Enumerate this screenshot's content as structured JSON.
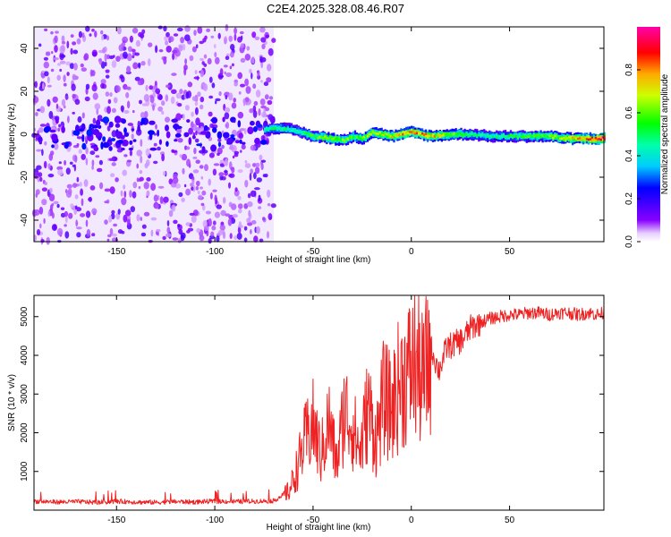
{
  "title": "C2E4.2025.328.08.46.R07",
  "colors": {
    "snr_line": "#ee2222",
    "background": "#ffffff",
    "colormap": [
      "#ffffff",
      "#8800ff",
      "#0000ff",
      "#00ffff",
      "#00ff00",
      "#ffff00",
      "#ff0000",
      "#ff00ff"
    ]
  },
  "chart_data": [
    {
      "type": "heatmap",
      "xlabel": "Height of straight line (km)",
      "ylabel": "Frequency (Hz)",
      "xlim": [
        -192,
        98
      ],
      "ylim": [
        -50,
        50
      ],
      "x_ticks": [
        -150,
        -100,
        -50,
        0,
        50
      ],
      "x_tick_labels": [
        "-150",
        "-100",
        "-50",
        "0",
        "50"
      ],
      "y_ticks": [
        -40,
        -20,
        0,
        20,
        40
      ],
      "y_tick_labels": [
        "-40",
        "-20",
        "0",
        "20",
        "40"
      ],
      "colorbar": {
        "label": "Normalized spectral amplitude",
        "range": [
          0.0,
          1.0
        ],
        "ticks": [
          0.0,
          0.2,
          0.4,
          0.6,
          0.8
        ],
        "tick_labels": [
          "0.0",
          "0.2",
          "0.4",
          "0.6",
          "0.8"
        ]
      },
      "noise_region_x": [
        -192,
        -70
      ],
      "signal_track": {
        "x": [
          -75,
          -70,
          -60,
          -50,
          -40,
          -35,
          -30,
          -25,
          -20,
          -10,
          0,
          10,
          20,
          30,
          40,
          50,
          60,
          70,
          80,
          90,
          98
        ],
        "frequency": [
          2,
          3,
          2,
          -1,
          -2,
          -3,
          -1,
          -2,
          1,
          -1,
          1,
          -1,
          0,
          0,
          -1,
          -1,
          -1,
          -1,
          -2,
          -2,
          -2
        ],
        "amplitude": [
          0.45,
          0.5,
          0.45,
          0.55,
          0.65,
          0.6,
          0.55,
          0.6,
          0.65,
          0.7,
          0.8,
          0.75,
          0.6,
          0.5,
          0.45,
          0.5,
          0.55,
          0.6,
          0.7,
          0.85,
          0.95
        ]
      },
      "noise_band_x": [
        -190,
        -70
      ],
      "noise_band_frequency": [
        0,
        0
      ]
    },
    {
      "type": "line",
      "xlabel": "Height of straight line (km)",
      "ylabel": "SNR (10 * v/v)",
      "xlim": [
        -192,
        98
      ],
      "ylim": [
        0,
        5550
      ],
      "x_ticks": [
        -150,
        -100,
        -50,
        0,
        50
      ],
      "x_tick_labels": [
        "-150",
        "-100",
        "-50",
        "0",
        "50"
      ],
      "y_ticks": [
        1000,
        2000,
        3000,
        4000,
        5000
      ],
      "y_tick_labels": [
        "1000",
        "2000",
        "3000",
        "4000",
        "5000"
      ],
      "series": [
        {
          "x": [
            -192,
            -180,
            -170,
            -160,
            -150,
            -140,
            -130,
            -120,
            -110,
            -100,
            -90,
            -80,
            -70,
            -62,
            -58,
            -54,
            -50,
            -46,
            -42,
            -38,
            -34,
            -30,
            -26,
            -22,
            -18,
            -14,
            -10,
            -6,
            -2,
            2,
            6,
            10,
            14,
            18,
            22,
            26,
            30,
            35,
            40,
            45,
            50,
            55,
            60,
            65,
            70,
            75,
            80,
            85,
            90,
            95,
            98
          ],
          "y": [
            230,
            210,
            220,
            200,
            230,
            210,
            200,
            220,
            210,
            230,
            220,
            230,
            240,
            500,
            1100,
            1800,
            2200,
            1400,
            2300,
            1200,
            2600,
            2200,
            1500,
            2700,
            1800,
            2900,
            2600,
            3300,
            3500,
            3800,
            3300,
            4200,
            3600,
            4200,
            4300,
            4400,
            4700,
            4850,
            4950,
            5000,
            5050,
            5050,
            5100,
            5100,
            5050,
            5100,
            5100,
            5050,
            5100,
            5050,
            5100
          ]
        }
      ]
    }
  ]
}
